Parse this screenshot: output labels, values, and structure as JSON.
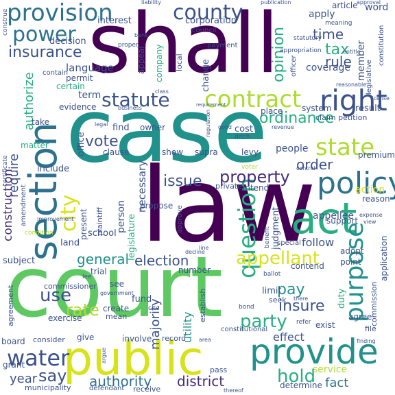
{
  "palette": {
    "dark_purple": "#440154",
    "purple": "#472d7b",
    "indigo": "#3b528b",
    "blue": "#2c728e",
    "teal": "#21918c",
    "sea_green": "#28ae80",
    "green": "#5ec962",
    "lime": "#addc30",
    "yellow": "#d8e219"
  },
  "words": [
    {
      "id": "court",
      "text": "court",
      "color": "#5ec962"
    },
    {
      "id": "law",
      "text": "law",
      "color": "#440154"
    },
    {
      "id": "case",
      "text": "case",
      "color": "#21918c"
    },
    {
      "id": "shall",
      "text": "shall",
      "color": "#440154"
    },
    {
      "id": "public",
      "text": "public",
      "color": "#d8e219"
    },
    {
      "id": "provide",
      "text": "provide",
      "color": "#21918c"
    },
    {
      "id": "section",
      "text": "section",
      "color": "#2c728e"
    },
    {
      "id": "act",
      "text": "act",
      "color": "#28ae80"
    },
    {
      "id": "policy",
      "text": "policy",
      "color": "#2c728e"
    },
    {
      "id": "contract",
      "text": "contract",
      "color": "#addc30"
    },
    {
      "id": "right",
      "text": "right",
      "color": "#3b528b"
    },
    {
      "id": "provision",
      "text": "provision",
      "color": "#2c728e"
    },
    {
      "id": "statute",
      "text": "statute",
      "color": "#3b528b"
    },
    {
      "id": "county",
      "text": "county",
      "color": "#3b528b"
    },
    {
      "id": "power",
      "text": "power",
      "color": "#2c728e"
    },
    {
      "id": "water",
      "text": "water",
      "color": "#3b528b"
    },
    {
      "id": "question",
      "text": "question",
      "color": "#28ae80"
    },
    {
      "id": "state",
      "text": "state",
      "color": "#addc30"
    },
    {
      "id": "purpose",
      "text": "purpose",
      "color": "#21918c"
    },
    {
      "id": "appellant",
      "text": "appellant",
      "color": "#d8e219"
    },
    {
      "id": "property",
      "text": "property",
      "color": "#472d7b"
    },
    {
      "id": "city",
      "text": "city",
      "color": "#d8e219"
    },
    {
      "id": "hold",
      "text": "hold",
      "color": "#28ae80"
    },
    {
      "id": "district",
      "text": "district",
      "color": "#472d7b"
    },
    {
      "id": "authority",
      "text": "authority",
      "color": "#2c728e"
    },
    {
      "id": "use",
      "text": "use",
      "color": "#3b528b"
    },
    {
      "id": "say",
      "text": "say",
      "color": "#3b528b"
    },
    {
      "id": "insurance",
      "text": "insurance",
      "color": "#3b528b"
    },
    {
      "id": "election",
      "text": "election",
      "color": "#3b528b"
    },
    {
      "id": "ordinance",
      "text": "ordinance",
      "color": "#28ae80"
    },
    {
      "id": "issue",
      "text": "issue",
      "color": "#3b528b"
    },
    {
      "id": "vote",
      "text": "vote",
      "color": "#3b528b"
    },
    {
      "id": "rate",
      "text": "rate",
      "color": "#addc30"
    },
    {
      "id": "party",
      "text": "party",
      "color": "#28ae80"
    },
    {
      "id": "insure",
      "text": "insure",
      "color": "#3b528b"
    },
    {
      "id": "pay",
      "text": "pay",
      "color": "#21918c"
    },
    {
      "id": "general",
      "text": "general",
      "color": "#21918c"
    },
    {
      "id": "effect",
      "text": "effect",
      "color": "#3b528b"
    },
    {
      "id": "fact",
      "text": "fact",
      "color": "#2c728e"
    },
    {
      "id": "year",
      "text": "year",
      "color": "#3b528b"
    },
    {
      "id": "tax",
      "text": "tax",
      "color": "#28ae80"
    },
    {
      "id": "time",
      "text": "time",
      "color": "#3b528b"
    },
    {
      "id": "rule",
      "text": "rule",
      "color": "#3b528b"
    },
    {
      "id": "opinion",
      "text": "opinion",
      "color": "#28ae80"
    },
    {
      "id": "require",
      "text": "require",
      "color": "#3b528b"
    },
    {
      "id": "construction",
      "text": "construction",
      "color": "#472d7b"
    },
    {
      "id": "authorize",
      "text": "authorize",
      "color": "#28ae80"
    },
    {
      "id": "order",
      "text": "order",
      "color": "#3b528b"
    },
    {
      "id": "term",
      "text": "term",
      "color": "#3b528b"
    },
    {
      "id": "utility",
      "text": "utility",
      "color": "#21918c"
    },
    {
      "id": "majority",
      "text": "majority",
      "color": "#3b528b"
    },
    {
      "id": "follow",
      "text": "follow",
      "color": "#3b528b"
    },
    {
      "id": "appellee",
      "text": "appellee",
      "color": "#3b528b"
    },
    {
      "id": "action",
      "text": "action",
      "color": "#d8e219"
    },
    {
      "id": "coverage",
      "text": "coverage",
      "color": "#3b528b"
    },
    {
      "id": "member",
      "text": "member",
      "color": "#3b528b"
    },
    {
      "id": "necessary",
      "text": "necessary",
      "color": "#3b528b"
    },
    {
      "id": "person",
      "text": "person",
      "color": "#3b528b"
    },
    {
      "id": "legislature",
      "text": "legislature",
      "color": "#28ae80"
    },
    {
      "id": "language",
      "text": "language",
      "color": "#3b528b"
    },
    {
      "id": "decision",
      "text": "decision",
      "color": "#3b528b"
    },
    {
      "id": "corporation",
      "text": "corporation",
      "color": "#3b528b"
    },
    {
      "id": "apply",
      "text": "apply",
      "color": "#3b528b"
    },
    {
      "id": "interest",
      "text": "interest",
      "color": "#3b528b"
    },
    {
      "id": "word",
      "text": "word",
      "color": "#3b528b"
    },
    {
      "id": "article",
      "text": "article",
      "color": "#3b528b"
    },
    {
      "id": "change",
      "text": "change",
      "color": "#3b528b"
    },
    {
      "id": "appeal",
      "text": "appeal",
      "color": "#3b528b"
    },
    {
      "id": "company",
      "text": "company",
      "color": "#28ae80"
    },
    {
      "id": "local",
      "text": "local",
      "color": "#3b528b"
    },
    {
      "id": "find",
      "text": "find",
      "color": "#3b528b"
    },
    {
      "id": "owner",
      "text": "owner",
      "color": "#3b528b"
    },
    {
      "id": "cost",
      "text": "cost",
      "color": "#3b528b"
    },
    {
      "id": "include",
      "text": "include",
      "color": "#3b528b"
    },
    {
      "id": "clause",
      "text": "clause",
      "color": "#3b528b"
    },
    {
      "id": "show",
      "text": "show",
      "color": "#3b528b"
    },
    {
      "id": "supra",
      "text": "supra",
      "color": "#3b528b"
    },
    {
      "id": "levy",
      "text": "levy",
      "color": "#3b528b"
    },
    {
      "id": "people",
      "text": "people",
      "color": "#3b528b"
    },
    {
      "id": "result",
      "text": "result",
      "color": "#3b528b"
    },
    {
      "id": "system",
      "text": "system",
      "color": "#3b528b"
    },
    {
      "id": "place",
      "text": "place",
      "color": "#3b528b"
    },
    {
      "id": "claim_petition",
      "text": "claim petition",
      "color": "#3b528b"
    },
    {
      "id": "evidence",
      "text": "evidence",
      "color": "#3b528b"
    },
    {
      "id": "certain",
      "text": "certain",
      "color": "#28ae80"
    },
    {
      "id": "permit",
      "text": "permit",
      "color": "#3b528b"
    },
    {
      "id": "contain",
      "text": "contain",
      "color": "#3b528b"
    },
    {
      "id": "office",
      "text": "office",
      "color": "#3b528b"
    },
    {
      "id": "take",
      "text": "take",
      "color": "#3b528b"
    },
    {
      "id": "matter",
      "text": "matter",
      "color": "#28ae80"
    },
    {
      "id": "present",
      "text": "present",
      "color": "#3b528b"
    },
    {
      "id": "plaintiff",
      "text": "plaintiff",
      "color": "#3b528b"
    },
    {
      "id": "school",
      "text": "school",
      "color": "#3b528b"
    },
    {
      "id": "land",
      "text": "land",
      "color": "#3b528b"
    },
    {
      "id": "subject",
      "text": "subject",
      "color": "#3b528b"
    },
    {
      "id": "propose",
      "text": "propose",
      "color": "#3b528b"
    },
    {
      "id": "judgment",
      "text": "judgment",
      "color": "#3b528b"
    },
    {
      "id": "intend",
      "text": "intend",
      "color": "#3b528b"
    },
    {
      "id": "private",
      "text": "private",
      "color": "#3b528b"
    },
    {
      "id": "premium",
      "text": "premium",
      "color": "#3b528b"
    },
    {
      "id": "reason",
      "text": "reason",
      "color": "#3b528b"
    },
    {
      "id": "application",
      "text": "application",
      "color": "#3b528b"
    },
    {
      "id": "support",
      "text": "support",
      "color": "#3b528b"
    },
    {
      "id": "adopt",
      "text": "adopt",
      "color": "#3b528b"
    },
    {
      "id": "point",
      "text": "point",
      "color": "#3b528b"
    },
    {
      "id": "contend",
      "text": "contend",
      "color": "#3b528b"
    },
    {
      "id": "limit",
      "text": "limit",
      "color": "#3b528b"
    },
    {
      "id": "seek",
      "text": "seek",
      "color": "#3b528b"
    },
    {
      "id": "duty",
      "text": "duty",
      "color": "#28ae80"
    },
    {
      "id": "agree",
      "text": "agree",
      "color": "#3b528b"
    },
    {
      "id": "exist",
      "text": "exist",
      "color": "#3b528b"
    },
    {
      "id": "file",
      "text": "file",
      "color": "#3b528b"
    },
    {
      "id": "commission",
      "text": "commission",
      "color": "#3b528b"
    },
    {
      "id": "commissioner",
      "text": "commissioner",
      "color": "#3b528b"
    },
    {
      "id": "agreement",
      "text": "agreement",
      "color": "#3b528b"
    },
    {
      "id": "exercise",
      "text": "exercise",
      "color": "#3b528b"
    },
    {
      "id": "create",
      "text": "create",
      "color": "#3b528b"
    },
    {
      "id": "mean",
      "text": "mean",
      "color": "#3b528b"
    },
    {
      "id": "fund",
      "text": "fund",
      "color": "#3b528b"
    },
    {
      "id": "see",
      "text": "see",
      "color": "#3b528b"
    },
    {
      "id": "trial",
      "text": "trial",
      "color": "#3b528b"
    },
    {
      "id": "establish",
      "text": "establish",
      "color": "#3b528b"
    },
    {
      "id": "number",
      "text": "number",
      "color": "#3b528b"
    },
    {
      "id": "board",
      "text": "board",
      "color": "#3b528b"
    },
    {
      "id": "consider",
      "text": "consider",
      "color": "#3b528b"
    },
    {
      "id": "give",
      "text": "give",
      "color": "#3b528b"
    },
    {
      "id": "involve",
      "text": "involve",
      "color": "#3b528b"
    },
    {
      "id": "record",
      "text": "record",
      "color": "#3b528b"
    },
    {
      "id": "grant",
      "text": "grant",
      "color": "#3b528b"
    },
    {
      "id": "receive",
      "text": "receive",
      "color": "#3b528b"
    },
    {
      "id": "defendant",
      "text": "defendant",
      "color": "#3b528b"
    },
    {
      "id": "municipality",
      "text": "municipality",
      "color": "#3b528b"
    },
    {
      "id": "determine",
      "text": "determine",
      "color": "#3b528b"
    },
    {
      "id": "service",
      "text": "service",
      "color": "#addc30"
    },
    {
      "id": "constitutional",
      "text": "constitutional",
      "color": "#3b528b"
    },
    {
      "id": "pass",
      "text": "pass",
      "color": "#3b528b"
    },
    {
      "id": "constitution",
      "text": "constitution",
      "color": "#3b528b"
    },
    {
      "id": "legislative",
      "text": "legislative",
      "color": "#3b528b"
    },
    {
      "id": "payment",
      "text": "payment",
      "color": "#3b528b"
    },
    {
      "id": "council",
      "text": "council",
      "color": "#3b528b"
    },
    {
      "id": "proper",
      "text": "proper",
      "color": "#3b528b"
    },
    {
      "id": "officer",
      "text": "officer",
      "color": "#3b528b"
    },
    {
      "id": "statutory",
      "text": "statutory",
      "color": "#3b528b"
    },
    {
      "id": "meaning",
      "text": "meaning",
      "color": "#3b528b"
    },
    {
      "id": "appropriation",
      "text": "appropriation",
      "color": "#3b528b"
    },
    {
      "id": "approve",
      "text": "approve",
      "color": "#3b528b"
    },
    {
      "id": "amendment",
      "text": "amendment",
      "color": "#3b528b"
    },
    {
      "id": "condition",
      "text": "condition",
      "color": "#addc30"
    },
    {
      "id": "improvement",
      "text": "improvement",
      "color": "#3b528b"
    },
    {
      "id": "certificate",
      "text": "certificate",
      "color": "#3b528b"
    },
    {
      "id": "construe",
      "text": "construe",
      "color": "#3b528b"
    },
    {
      "id": "liability",
      "text": "liability",
      "color": "#3b528b"
    },
    {
      "id": "publication",
      "text": "publication",
      "color": "#3b528b"
    },
    {
      "id": "approval",
      "text": "approval",
      "color": "#3b528b"
    },
    {
      "id": "benefit",
      "text": "benefit",
      "color": "#3b528b"
    },
    {
      "id": "special",
      "text": "special",
      "color": "#3b528b"
    },
    {
      "id": "expense",
      "text": "expense",
      "color": "#3b528b"
    },
    {
      "id": "view",
      "text": "view",
      "color": "#3b528b"
    },
    {
      "id": "ballot",
      "text": "ballot",
      "color": "#3b528b"
    },
    {
      "id": "voter",
      "text": "voter",
      "color": "#addc30"
    },
    {
      "id": "control",
      "text": "control",
      "color": "#3b528b"
    },
    {
      "id": "revenue",
      "text": "revenue",
      "color": "#3b528b"
    },
    {
      "id": "business",
      "text": "business",
      "color": "#3b528b"
    },
    {
      "id": "license",
      "text": "license",
      "color": "#3b528b"
    },
    {
      "id": "ditch",
      "text": "ditch",
      "color": "#3b528b"
    },
    {
      "id": "good",
      "text": "good",
      "color": "#3b528b"
    },
    {
      "id": "regulation",
      "text": "regulation",
      "color": "#3b528b"
    },
    {
      "id": "requirement",
      "text": "requirement",
      "color": "#3b528b"
    },
    {
      "id": "cite",
      "text": "cite",
      "color": "#3b528b"
    },
    {
      "id": "decline",
      "text": "decline",
      "color": "#3b528b"
    },
    {
      "id": "government",
      "text": "government",
      "color": "#3b528b"
    },
    {
      "id": "lee",
      "text": "lee",
      "color": "#3b528b"
    },
    {
      "id": "there",
      "text": "there",
      "color": "#3b528b"
    },
    {
      "id": "refer",
      "text": "refer",
      "color": "#3b528b"
    },
    {
      "id": "argue",
      "text": "argue",
      "color": "#3b528b"
    },
    {
      "id": "area",
      "text": "area",
      "color": "#3b528b"
    },
    {
      "id": "finding",
      "text": "finding",
      "color": "#3b528b"
    },
    {
      "id": "bond",
      "text": "bond",
      "color": "#3b528b"
    },
    {
      "id": "reasonable",
      "text": "reasonable",
      "color": "#3b528b"
    },
    {
      "id": "entitle",
      "text": "entitle",
      "color": "#3b528b"
    },
    {
      "id": "bane",
      "text": "bane",
      "color": "#3b528b"
    },
    {
      "id": "class",
      "text": "class",
      "color": "#3b528b"
    },
    {
      "id": "legal",
      "text": "legal",
      "color": "#3b528b"
    },
    {
      "id": "line",
      "text": "line",
      "color": "#3b528b"
    },
    {
      "id": "thereof",
      "text": "thereof",
      "color": "#3b528b"
    }
  ]
}
